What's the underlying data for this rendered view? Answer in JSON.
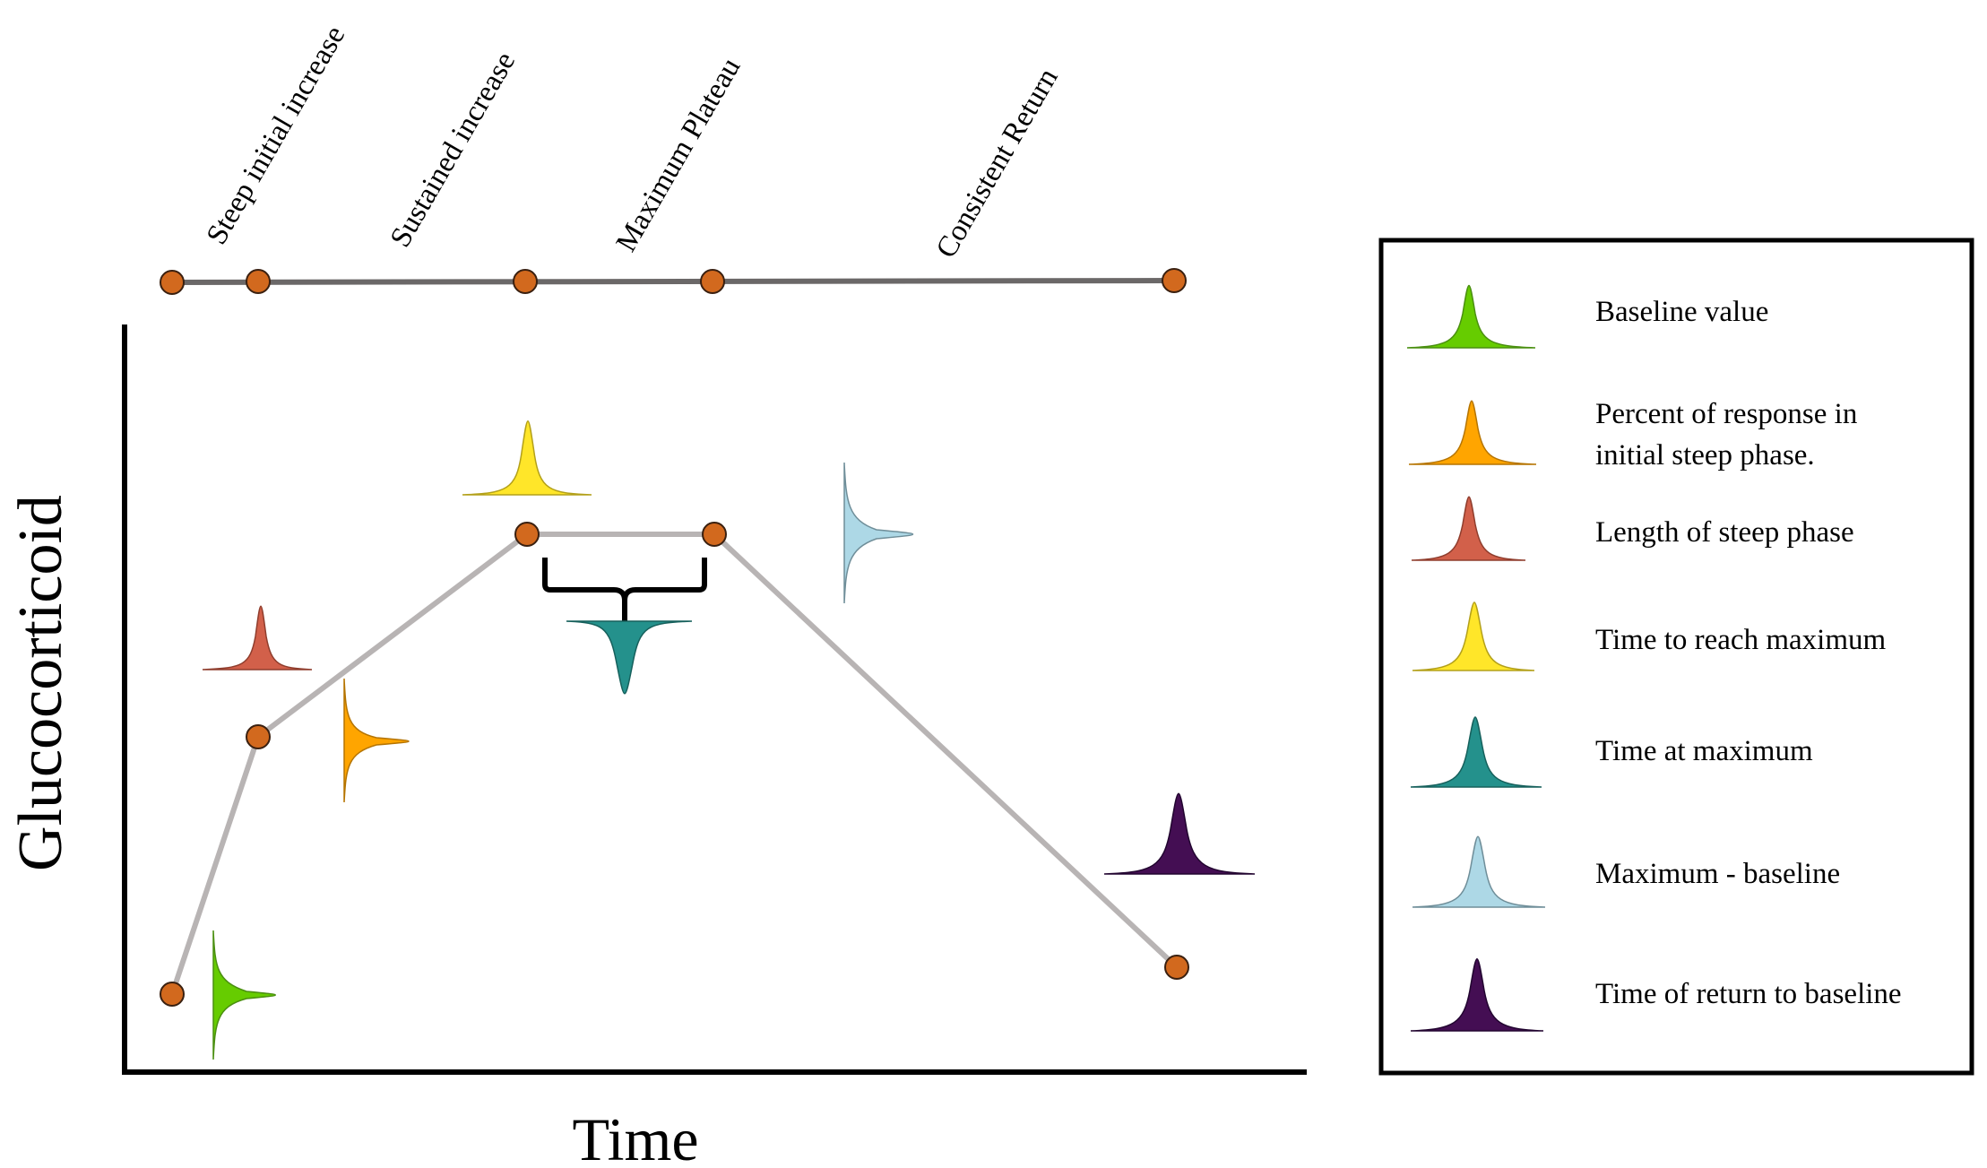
{
  "axes": {
    "x_label": "Time",
    "y_label": "Glucocorticoid"
  },
  "phase_labels": [
    "Steep initial increase",
    "Sustained increase",
    "Maximum Plateau",
    "Consistent Return"
  ],
  "legend": {
    "items": [
      {
        "id": "baseline",
        "line1": "Baseline value",
        "line2": "",
        "color": "#66cc00"
      },
      {
        "id": "percent",
        "line1": "Percent of response in",
        "line2": "initial steep phase.",
        "color": "#ffa500"
      },
      {
        "id": "length",
        "line1": "Length of steep phase",
        "line2": "",
        "color": "#d2604a"
      },
      {
        "id": "time-max",
        "line1": "Time to reach maximum",
        "line2": "",
        "color": "#ffe629"
      },
      {
        "id": "time-at-max",
        "line1": "Time at maximum",
        "line2": "",
        "color": "#24918c"
      },
      {
        "id": "max-baseline",
        "line1": "Maximum - baseline",
        "line2": "",
        "color": "#add8e6"
      },
      {
        "id": "return",
        "line1": "Time of return to baseline",
        "line2": "",
        "color": "#440e53"
      }
    ]
  },
  "colors": {
    "point_fill": "#d2691e",
    "curve_line": "#b8b4b4",
    "timeline_line": "#6b6868",
    "frame": "#000000"
  }
}
